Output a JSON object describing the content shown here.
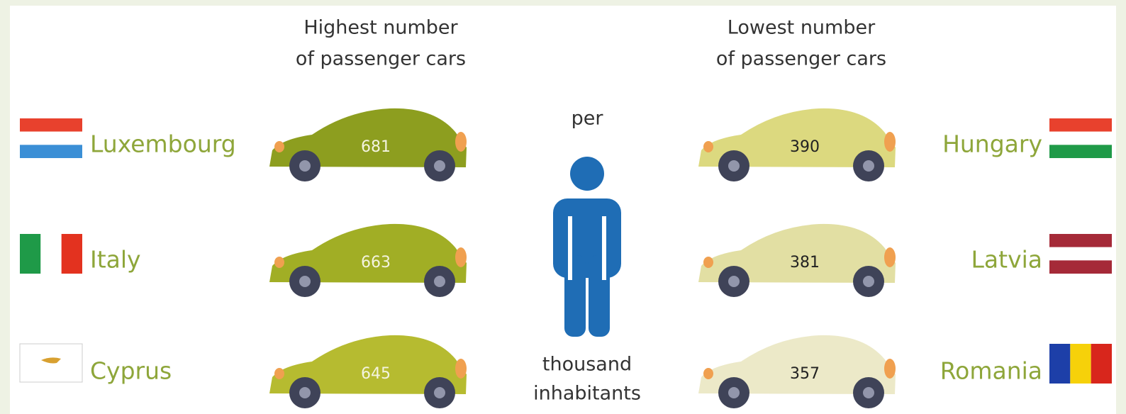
{
  "left": {
    "title_line1": "Highest number",
    "title_line2": "of passenger cars",
    "rows": [
      {
        "country": "Luxembourg",
        "value": "681"
      },
      {
        "country": "Italy",
        "value": "663"
      },
      {
        "country": "Cyprus",
        "value": "645"
      }
    ]
  },
  "right": {
    "title_line1": "Lowest number",
    "title_line2": "of passenger cars",
    "rows": [
      {
        "country": "Hungary",
        "value": "390"
      },
      {
        "country": "Latvia",
        "value": "381"
      },
      {
        "country": "Romania",
        "value": "357"
      }
    ]
  },
  "center": {
    "top": "per",
    "bottom_line1": "thousand",
    "bottom_line2": "inhabitants"
  }
}
